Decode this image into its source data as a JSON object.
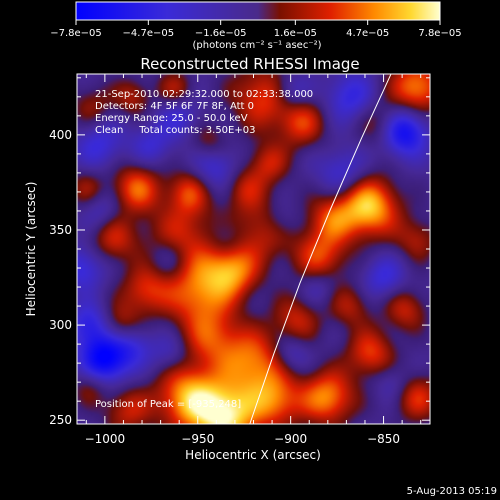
{
  "chart_data": {
    "type": "heatmap",
    "title": "Reconstructed RHESSI Image",
    "xlabel": "Heliocentric X (arcsec)",
    "ylabel": "Heliocentric Y (arcsec)",
    "xlim": [
      -1015,
      -825
    ],
    "ylim": [
      248,
      432
    ],
    "x_ticks": [
      -1000,
      -950,
      -900,
      -850
    ],
    "x_tick_labels": [
      "−1000",
      "−950",
      "−900",
      "−850"
    ],
    "y_ticks": [
      250,
      300,
      350,
      400
    ],
    "y_tick_labels": [
      "250",
      "300",
      "350",
      "400"
    ],
    "colorbar": {
      "ticks": [
        -7.8e-05,
        -4.7e-05,
        -1.6e-05,
        1.6e-05,
        4.7e-05,
        7.8e-05
      ],
      "tick_labels": [
        "−7.8e−05",
        "−4.7e−05",
        "−1.6e−05",
        "1.6e−05",
        "4.7e−05",
        "7.8e−05"
      ],
      "range": [
        -7.8e-05,
        7.8e-05
      ],
      "units": "(photons cm⁻² s⁻¹ asec⁻²)"
    },
    "info_lines": [
      "21-Sep-2010 02:29:32.000 to 02:33:38.000",
      "Detectors: 4F 5F 6F 7F 8F, Att 0",
      "Energy Range: 25.0 - 50.0 keV",
      "Clean     Total counts: 3.50E+03"
    ],
    "peak_label": "Position of Peak = [-935,248]",
    "limb_curve": [
      {
        "x": -922,
        "y": 248
      },
      {
        "x": -909,
        "y": 285
      },
      {
        "x": -895,
        "y": 322
      },
      {
        "x": -879,
        "y": 360
      },
      {
        "x": -862,
        "y": 398
      },
      {
        "x": -846,
        "y": 432
      }
    ],
    "sources": [
      {
        "x": -950,
        "y": 316,
        "v": 5e-05,
        "s": 12
      },
      {
        "x": -932,
        "y": 328,
        "v": 6e-05,
        "s": 10
      },
      {
        "x": -958,
        "y": 345,
        "v": 4e-05,
        "s": 14
      },
      {
        "x": -915,
        "y": 350,
        "v": 3.5e-05,
        "s": 12
      },
      {
        "x": -884,
        "y": 336,
        "v": 4.5e-05,
        "s": 10
      },
      {
        "x": -858,
        "y": 362,
        "v": 7.5e-05,
        "s": 11
      },
      {
        "x": -878,
        "y": 356,
        "v": 4e-05,
        "s": 9
      },
      {
        "x": -850,
        "y": 405,
        "v": 3.5e-05,
        "s": 9
      },
      {
        "x": -832,
        "y": 425,
        "v": 6e-05,
        "s": 10
      },
      {
        "x": -915,
        "y": 420,
        "v": 4.5e-05,
        "s": 12
      },
      {
        "x": -894,
        "y": 406,
        "v": 4e-05,
        "s": 9
      },
      {
        "x": -912,
        "y": 385,
        "v": 3.5e-05,
        "s": 8
      },
      {
        "x": -925,
        "y": 372,
        "v": 3e-05,
        "s": 8
      },
      {
        "x": -983,
        "y": 372,
        "v": 5e-05,
        "s": 9
      },
      {
        "x": -955,
        "y": 370,
        "v": 4e-05,
        "s": 8
      },
      {
        "x": -995,
        "y": 345,
        "v": 3.5e-05,
        "s": 9
      },
      {
        "x": -1010,
        "y": 372,
        "v": 2.5e-05,
        "s": 7
      },
      {
        "x": -1007,
        "y": 415,
        "v": 2.5e-05,
        "s": 8
      },
      {
        "x": -985,
        "y": 420,
        "v": 3e-05,
        "s": 7
      },
      {
        "x": -962,
        "y": 424,
        "v": 3e-05,
        "s": 7
      },
      {
        "x": -944,
        "y": 396,
        "v": 2.5e-05,
        "s": 7
      },
      {
        "x": -978,
        "y": 318,
        "v": 4e-05,
        "s": 9
      },
      {
        "x": -992,
        "y": 300,
        "v": 3.5e-05,
        "s": 8
      },
      {
        "x": -942,
        "y": 293,
        "v": 4e-05,
        "s": 11
      },
      {
        "x": -920,
        "y": 280,
        "v": 5.5e-05,
        "s": 12
      },
      {
        "x": -897,
        "y": 303,
        "v": 3.5e-05,
        "s": 9
      },
      {
        "x": -955,
        "y": 262,
        "v": 6.5e-05,
        "s": 12
      },
      {
        "x": -935,
        "y": 252,
        "v": 8e-05,
        "s": 12
      },
      {
        "x": -908,
        "y": 260,
        "v": 5e-05,
        "s": 10
      },
      {
        "x": -880,
        "y": 262,
        "v": 6e-05,
        "s": 10
      },
      {
        "x": -857,
        "y": 285,
        "v": 4.5e-05,
        "s": 9
      },
      {
        "x": -868,
        "y": 310,
        "v": 3e-05,
        "s": 8
      },
      {
        "x": -832,
        "y": 345,
        "v": 3e-05,
        "s": 8
      },
      {
        "x": -838,
        "y": 308,
        "v": 3.5e-05,
        "s": 8
      },
      {
        "x": -832,
        "y": 262,
        "v": 4e-05,
        "s": 9
      },
      {
        "x": -988,
        "y": 255,
        "v": 3.5e-05,
        "s": 9
      },
      {
        "x": -1008,
        "y": 268,
        "v": 2.5e-05,
        "s": 7
      },
      {
        "x": -1000,
        "y": 282,
        "v": -7e-05,
        "s": 9
      },
      {
        "x": -985,
        "y": 290,
        "v": -3e-05,
        "s": 8
      },
      {
        "x": -1008,
        "y": 300,
        "v": -4e-05,
        "s": 8
      },
      {
        "x": -840,
        "y": 402,
        "v": -7e-05,
        "s": 9
      },
      {
        "x": -940,
        "y": 383,
        "v": -3e-05,
        "s": 9
      },
      {
        "x": -960,
        "y": 410,
        "v": -2.5e-05,
        "s": 8
      },
      {
        "x": -868,
        "y": 420,
        "v": -3.5e-05,
        "s": 9
      },
      {
        "x": -900,
        "y": 423,
        "v": -3e-05,
        "s": 7
      },
      {
        "x": -1003,
        "y": 395,
        "v": -3e-05,
        "s": 9
      },
      {
        "x": -975,
        "y": 395,
        "v": -2.5e-05,
        "s": 8
      },
      {
        "x": -965,
        "y": 335,
        "v": -2.5e-05,
        "s": 8
      },
      {
        "x": -935,
        "y": 345,
        "v": -2e-05,
        "s": 7
      },
      {
        "x": -872,
        "y": 380,
        "v": -3e-05,
        "s": 9
      },
      {
        "x": -905,
        "y": 355,
        "v": -2e-05,
        "s": 7
      },
      {
        "x": -885,
        "y": 320,
        "v": -2e-05,
        "s": 7
      },
      {
        "x": -850,
        "y": 325,
        "v": -3e-05,
        "s": 8
      },
      {
        "x": -900,
        "y": 285,
        "v": -2.5e-05,
        "s": 7
      },
      {
        "x": -965,
        "y": 285,
        "v": -2e-05,
        "s": 7
      },
      {
        "x": -1012,
        "y": 330,
        "v": -3.5e-05,
        "s": 8
      },
      {
        "x": -845,
        "y": 270,
        "v": -2e-05,
        "s": 7
      },
      {
        "x": -1002,
        "y": 360,
        "v": -2e-05,
        "s": 7
      }
    ]
  },
  "footer": {
    "date": "5-Aug-2013 05:19"
  }
}
